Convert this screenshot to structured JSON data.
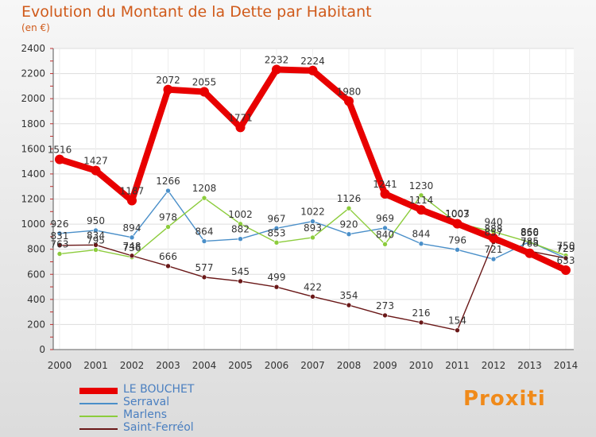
{
  "title": "Evolution du Montant de la Dette par Habitant",
  "subtitle": "(en €)",
  "logo_text": "Proxiti",
  "chart_data": {
    "type": "line",
    "x": [
      "2000",
      "2001",
      "2002",
      "2003",
      "2004",
      "2005",
      "2006",
      "2007",
      "2008",
      "2009",
      "2010",
      "2011",
      "2012",
      "2013",
      "2014"
    ],
    "ylim": [
      0,
      2400
    ],
    "yticks": [
      "0",
      "200",
      "400",
      "600",
      "800",
      "1000",
      "1200",
      "1400",
      "1600",
      "1800",
      "2000",
      "2200",
      "2400"
    ],
    "grid": true,
    "legend": "bottom-left",
    "series": [
      {
        "name": "LE BOUCHET",
        "color": "#e80000",
        "values": [
          1516,
          1427,
          1187,
          2072,
          2055,
          1771,
          2232,
          2224,
          1980,
          1241,
          1114,
          1003,
          888,
          768,
          633
        ]
      },
      {
        "name": "Serraval",
        "color": "#4a8fc9",
        "values": [
          926,
          950,
          894,
          1266,
          864,
          882,
          967,
          1022,
          920,
          969,
          844,
          796,
          721,
          860,
          729
        ]
      },
      {
        "name": "Marlens",
        "color": "#8ccc3c",
        "values": [
          763,
          795,
          736,
          978,
          1208,
          1002,
          853,
          893,
          1126,
          840,
          1230,
          1007,
          940,
          856,
          750
        ]
      },
      {
        "name": "Saint-Ferréol",
        "color": "#6a1818",
        "values": [
          831,
          834,
          748,
          666,
          577,
          545,
          499,
          422,
          354,
          273,
          216,
          154,
          857,
          785,
          729
        ]
      }
    ]
  }
}
